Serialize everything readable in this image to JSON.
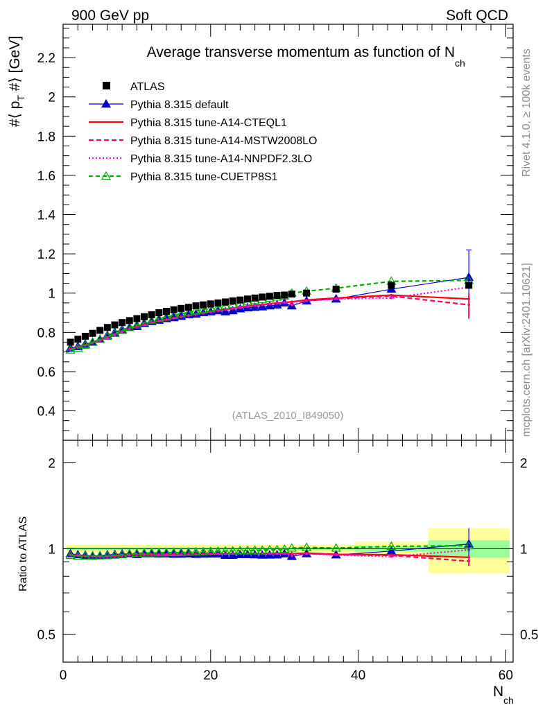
{
  "header": {
    "left": "900 GeV pp",
    "right": "Soft QCD"
  },
  "side_labels": {
    "rivet": "Rivet 4.1.0, ≥ 100k events",
    "mcplots": "mcplots.cern.ch [arXiv:2401.10621]"
  },
  "chart_data": {
    "type": "scatter",
    "title": "Average transverse momentum as function of N",
    "title_sub": "ch",
    "watermark": "(ATLAS_2010_I849050)",
    "xlabel": "N",
    "xlabel_sub": "ch",
    "ylabel_main": "#⟨ p",
    "ylabel_sub": "T",
    "ylabel_tail": " #⟩ [GeV]",
    "ylabel_ratio": "Ratio to ATLAS",
    "xlim": [
      0,
      61
    ],
    "ylim": [
      0.25,
      2.37
    ],
    "ratio_ylim": [
      0.4,
      2.4
    ],
    "x_ticks": [
      "0",
      "20",
      "40",
      "60"
    ],
    "y_ticks": [
      "0.4",
      "0.6",
      "0.8",
      "1",
      "1.2",
      "1.4",
      "1.6",
      "1.8",
      "2",
      "2.2"
    ],
    "ratio_ticks": [
      "0.5",
      "1",
      "2"
    ],
    "x": [
      1,
      2,
      3,
      4,
      5,
      6,
      7,
      8,
      9,
      10,
      11,
      12,
      13,
      14,
      15,
      16,
      17,
      18,
      19,
      20,
      21,
      22,
      23,
      24,
      25,
      26,
      27,
      28,
      29,
      30,
      31,
      33,
      37,
      44.5,
      55
    ],
    "bands": [
      {
        "x0": 39.5,
        "x1": 49.5,
        "inner": 0.02,
        "outer": 0.06
      },
      {
        "x0": 49.5,
        "x1": 60.5,
        "inner": 0.07,
        "outer": 0.18
      }
    ],
    "series": [
      {
        "name": "ATLAS",
        "color": "#000000",
        "style": "data",
        "values": [
          0.75,
          0.765,
          0.78,
          0.795,
          0.81,
          0.825,
          0.838,
          0.85,
          0.86,
          0.87,
          0.88,
          0.89,
          0.9,
          0.907,
          0.915,
          0.922,
          0.928,
          0.935,
          0.94,
          0.945,
          0.95,
          0.955,
          0.96,
          0.965,
          0.97,
          0.975,
          0.98,
          0.984,
          0.988,
          0.99,
          0.995,
          1.0,
          1.02,
          1.04,
          1.04
        ]
      },
      {
        "name": "Pythia 8.315 default",
        "color": "#0000cc",
        "style": "solid-tri",
        "values": [
          0.72,
          0.728,
          0.74,
          0.75,
          0.765,
          0.785,
          0.8,
          0.815,
          0.825,
          0.83,
          0.845,
          0.855,
          0.862,
          0.87,
          0.875,
          0.882,
          0.89,
          0.893,
          0.9,
          0.905,
          0.91,
          0.905,
          0.91,
          0.92,
          0.925,
          0.928,
          0.93,
          0.935,
          0.94,
          0.95,
          0.935,
          0.96,
          0.97,
          1.02,
          1.08
        ]
      },
      {
        "name": "Pythia 8.315 tune-A14-CTEQL1",
        "color": "#ff0000",
        "style": "solid",
        "values": [
          0.715,
          0.725,
          0.735,
          0.748,
          0.76,
          0.775,
          0.79,
          0.805,
          0.82,
          0.83,
          0.84,
          0.85,
          0.858,
          0.866,
          0.874,
          0.88,
          0.887,
          0.893,
          0.9,
          0.906,
          0.912,
          0.918,
          0.923,
          0.928,
          0.933,
          0.938,
          0.942,
          0.946,
          0.95,
          0.953,
          0.956,
          0.965,
          0.975,
          0.99,
          0.97
        ]
      },
      {
        "name": "Pythia 8.315 tune-A14-MSTW2008LO",
        "color": "#ff0066",
        "style": "dashed",
        "values": [
          0.712,
          0.722,
          0.733,
          0.746,
          0.758,
          0.773,
          0.788,
          0.803,
          0.817,
          0.828,
          0.838,
          0.848,
          0.856,
          0.864,
          0.872,
          0.878,
          0.885,
          0.891,
          0.898,
          0.904,
          0.91,
          0.916,
          0.921,
          0.926,
          0.931,
          0.936,
          0.94,
          0.944,
          0.948,
          0.952,
          0.955,
          0.962,
          0.972,
          0.985,
          0.94
        ]
      },
      {
        "name": "Pythia 8.315 tune-A14-NNPDF2.3LO",
        "color": "#ff00cc",
        "style": "dotted",
        "values": [
          0.713,
          0.723,
          0.734,
          0.747,
          0.759,
          0.774,
          0.789,
          0.804,
          0.818,
          0.829,
          0.839,
          0.849,
          0.857,
          0.865,
          0.873,
          0.879,
          0.886,
          0.892,
          0.899,
          0.905,
          0.911,
          0.917,
          0.922,
          0.927,
          0.932,
          0.937,
          0.941,
          0.945,
          0.949,
          0.953,
          0.94,
          0.96,
          0.97,
          0.975,
          1.03
        ]
      },
      {
        "name": "Pythia 8.315 tune-CUETP8S1",
        "color": "#00aa00",
        "style": "dashed-tri",
        "values": [
          0.71,
          0.72,
          0.735,
          0.75,
          0.765,
          0.78,
          0.795,
          0.81,
          0.825,
          0.838,
          0.85,
          0.86,
          0.87,
          0.878,
          0.886,
          0.894,
          0.902,
          0.91,
          0.917,
          0.924,
          0.93,
          0.937,
          0.943,
          0.95,
          0.956,
          0.962,
          0.968,
          0.975,
          0.98,
          0.985,
          1.0,
          1.01,
          1.025,
          1.06,
          1.065
        ]
      }
    ]
  }
}
